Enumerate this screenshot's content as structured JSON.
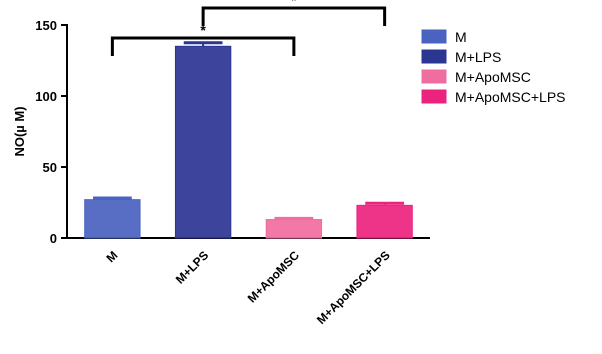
{
  "chart_data": {
    "type": "bar",
    "title": "",
    "xlabel": "",
    "ylabel": "NO(µ M)",
    "ylim": [
      0,
      150
    ],
    "yticks": [
      "0",
      "50",
      "100",
      "150"
    ],
    "categories": [
      "M",
      "M+LPS",
      "M+ApoMSC",
      "M+ApoMSC+LPS"
    ],
    "values": [
      27,
      135,
      13,
      23
    ],
    "errors": [
      1.2,
      2.5,
      0.8,
      1.5
    ],
    "colors": [
      "#4a62c0",
      "#2b3592",
      "#f06d9f",
      "#ec237e"
    ],
    "legend": {
      "position": "right",
      "entries": [
        "M",
        "M+LPS",
        "M+ApoMSC",
        "M+ApoMSC+LPS"
      ]
    },
    "significance": [
      {
        "from": 0,
        "to": 2,
        "label": "*"
      },
      {
        "from": 1,
        "to": 3,
        "label": "*"
      }
    ]
  }
}
